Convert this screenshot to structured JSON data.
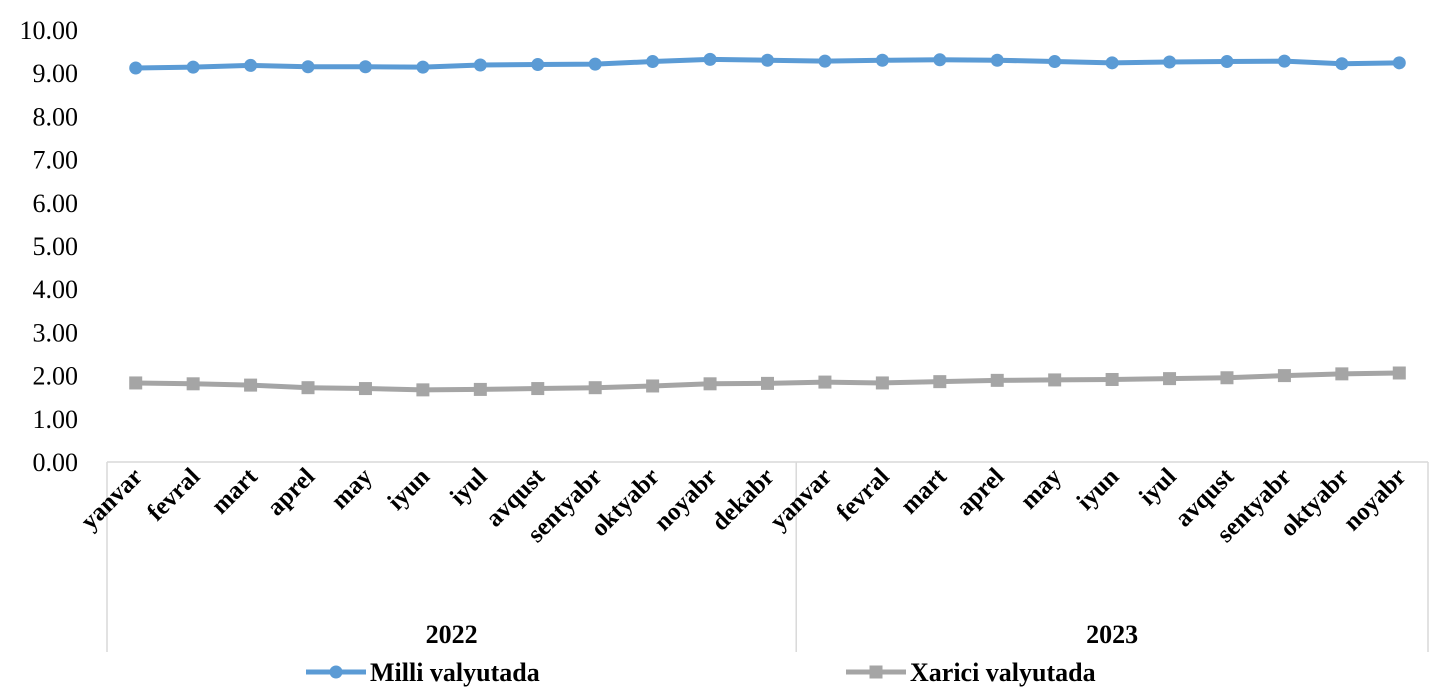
{
  "chart_data": {
    "type": "line",
    "categories": [
      "yanvar",
      "fevral",
      "mart",
      "aprel",
      "may",
      "iyun",
      "iyul",
      "avqust",
      "sentyabr",
      "oktyabr",
      "noyabr",
      "dekabr",
      "yanvar",
      "fevral",
      "mart",
      "aprel",
      "may",
      "iyun",
      "iyul",
      "avqust",
      "sentyabr",
      "oktyabr",
      "noyabr"
    ],
    "groups": [
      {
        "label": "2022",
        "count": 12
      },
      {
        "label": "2023",
        "count": 11
      }
    ],
    "yticks": [
      "0.00",
      "1.00",
      "2.00",
      "3.00",
      "4.00",
      "5.00",
      "6.00",
      "7.00",
      "8.00",
      "9.00",
      "10.00"
    ],
    "ylim": [
      0,
      10
    ],
    "grid": false,
    "legend_position": "bottom",
    "series": [
      {
        "name": "Milli valyutada",
        "color": "#5b9bd5",
        "marker": "circle",
        "values": [
          9.12,
          9.14,
          9.18,
          9.15,
          9.15,
          9.14,
          9.19,
          9.2,
          9.21,
          9.27,
          9.32,
          9.3,
          9.28,
          9.3,
          9.31,
          9.3,
          9.27,
          9.24,
          9.26,
          9.27,
          9.28,
          9.22,
          9.24
        ]
      },
      {
        "name": "Xarici valyutada",
        "color": "#a5a5a5",
        "marker": "square",
        "values": [
          1.83,
          1.81,
          1.78,
          1.72,
          1.7,
          1.67,
          1.68,
          1.7,
          1.72,
          1.76,
          1.81,
          1.82,
          1.85,
          1.83,
          1.86,
          1.89,
          1.9,
          1.91,
          1.93,
          1.95,
          2.0,
          2.04,
          2.06
        ]
      }
    ]
  }
}
